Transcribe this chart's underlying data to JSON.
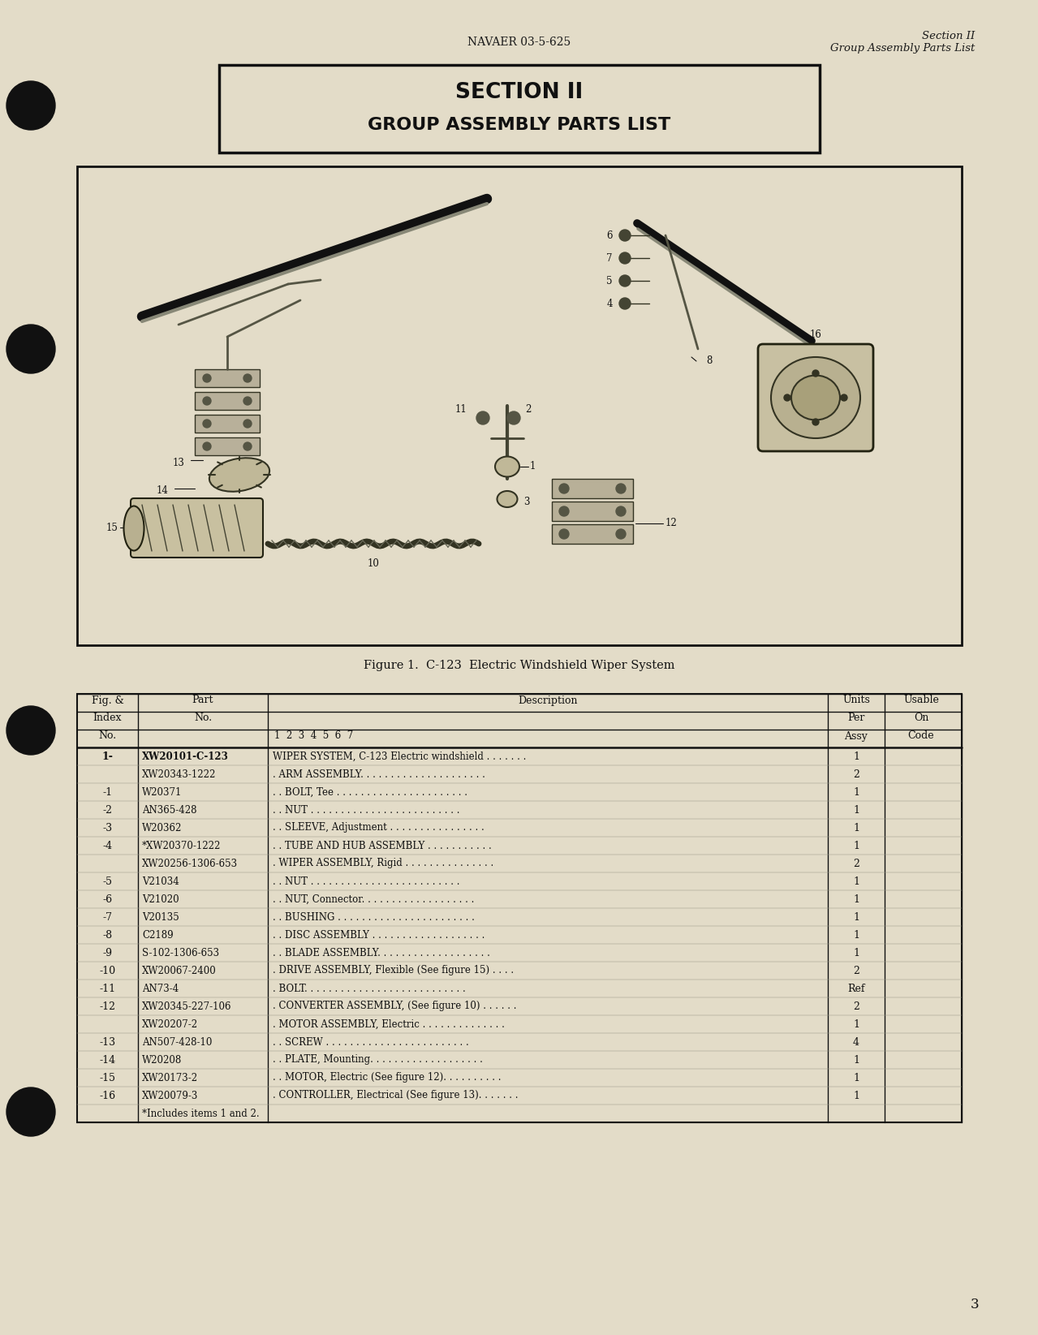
{
  "bg_color": "#e3dcc8",
  "header_left": "NAVAER 03-5-625",
  "header_right_line1": "Section II",
  "header_right_line2": "Group Assembly Parts List",
  "section_title_line1": "SECTION II",
  "section_title_line2": "GROUP ASSEMBLY PARTS LIST",
  "figure_caption": "Figure 1.  C-123  Electric Windshield Wiper System",
  "table_rows": [
    [
      "1-",
      "XW20101-C-123",
      "WIPER SYSTEM, C-123 Electric windshield . . . . . . .",
      "1",
      ""
    ],
    [
      "",
      "XW20343-1222",
      ". ARM ASSEMBLY. . . . . . . . . . . . . . . . . . . . .",
      "2",
      ""
    ],
    [
      "-1",
      "W20371",
      ". . BOLT, Tee . . . . . . . . . . . . . . . . . . . . . .",
      "1",
      ""
    ],
    [
      "-2",
      "AN365-428",
      ". . NUT . . . . . . . . . . . . . . . . . . . . . . . . .",
      "1",
      ""
    ],
    [
      "-3",
      "W20362",
      ". . SLEEVE, Adjustment . . . . . . . . . . . . . . . .",
      "1",
      ""
    ],
    [
      "-4",
      "*XW20370-1222",
      ". . TUBE AND HUB ASSEMBLY . . . . . . . . . . .",
      "1",
      ""
    ],
    [
      "",
      "XW20256-1306-653",
      ". WIPER ASSEMBLY, Rigid . . . . . . . . . . . . . . .",
      "2",
      ""
    ],
    [
      "-5",
      "V21034",
      ". . NUT . . . . . . . . . . . . . . . . . . . . . . . . .",
      "1",
      ""
    ],
    [
      "-6",
      "V21020",
      ". . NUT, Connector. . . . . . . . . . . . . . . . . . .",
      "1",
      ""
    ],
    [
      "-7",
      "V20135",
      ". . BUSHING . . . . . . . . . . . . . . . . . . . . . . .",
      "1",
      ""
    ],
    [
      "-8",
      "C2189",
      ". . DISC ASSEMBLY . . . . . . . . . . . . . . . . . . .",
      "1",
      ""
    ],
    [
      "-9",
      "S-102-1306-653",
      ". . BLADE ASSEMBLY. . . . . . . . . . . . . . . . . . .",
      "1",
      ""
    ],
    [
      "-10",
      "XW20067-2400",
      ". DRIVE ASSEMBLY, Flexible (See figure 15) . . . .",
      "2",
      ""
    ],
    [
      "-11",
      "AN73-4",
      ". BOLT. . . . . . . . . . . . . . . . . . . . . . . . . . .",
      "Ref",
      ""
    ],
    [
      "-12",
      "XW20345-227-106",
      ". CONVERTER ASSEMBLY, (See figure 10) . . . . . .",
      "2",
      ""
    ],
    [
      "",
      "XW20207-2",
      ". MOTOR ASSEMBLY, Electric . . . . . . . . . . . . . .",
      "1",
      ""
    ],
    [
      "-13",
      "AN507-428-10",
      ". . SCREW . . . . . . . . . . . . . . . . . . . . . . . .",
      "4",
      ""
    ],
    [
      "-14",
      "W20208",
      ". . PLATE, Mounting. . . . . . . . . . . . . . . . . . .",
      "1",
      ""
    ],
    [
      "-15",
      "XW20173-2",
      ". . MOTOR, Electric (See figure 12). . . . . . . . . .",
      "1",
      ""
    ],
    [
      "-16",
      "XW20079-3",
      ". CONTROLLER, Electrical (See figure 13). . . . . . .",
      "1",
      ""
    ],
    [
      "",
      "*Includes items 1 and 2.",
      "",
      "",
      ""
    ]
  ],
  "page_number": "3"
}
